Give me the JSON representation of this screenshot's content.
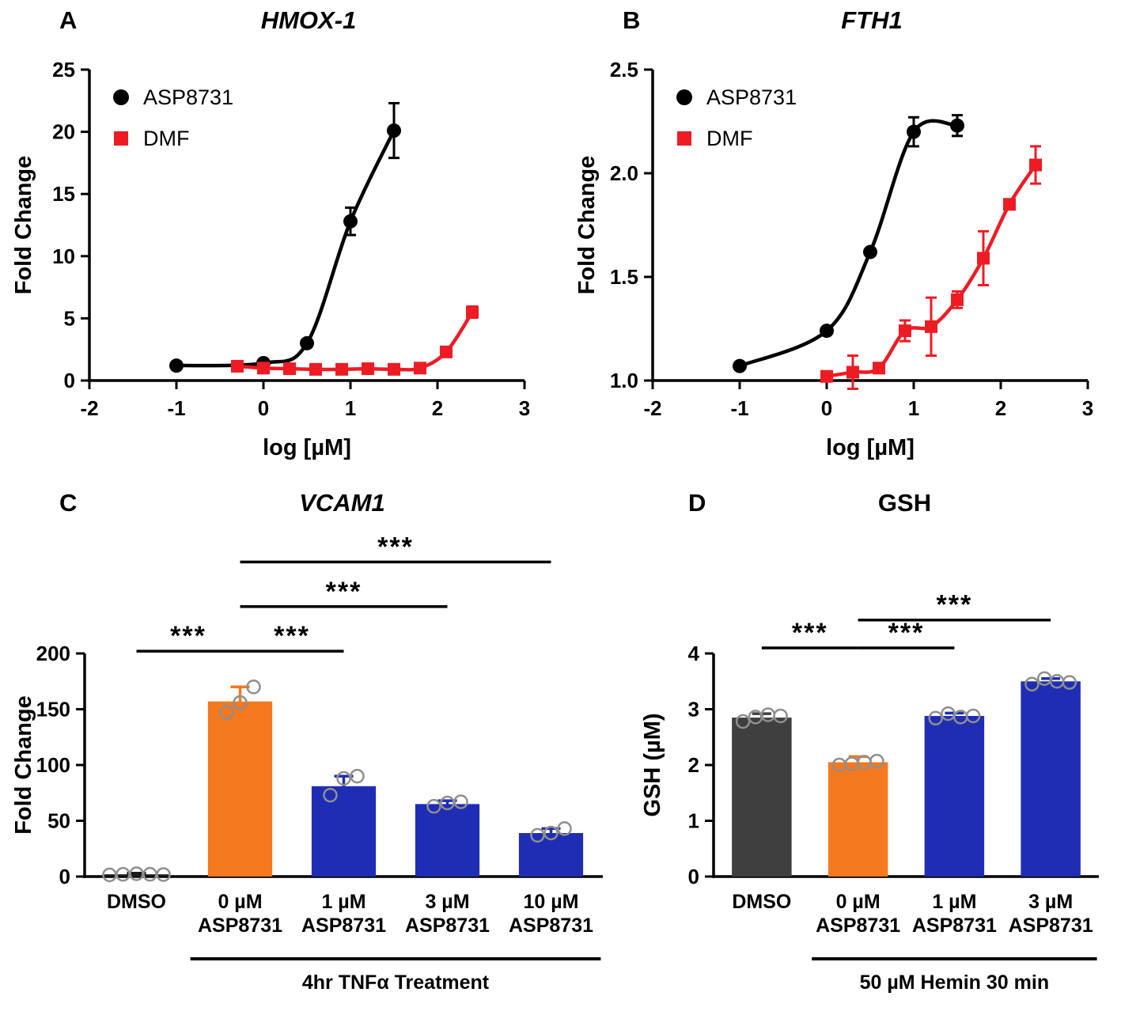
{
  "figure": {
    "background": "#ffffff"
  },
  "colors": {
    "black": "#000000",
    "red": "#ed1c24",
    "orange": "#f5791f",
    "blue": "#1f2db4",
    "dmso_dark": "#3f3f3f",
    "scatter_gray": "#8f8f8f"
  },
  "chart_data": [
    {
      "id": "hmox1",
      "panel_label": "A",
      "type": "line",
      "title": "HMOX-1",
      "xlabel": "log [µM]",
      "ylabel": "Fold Change",
      "xlim": [
        -2,
        3
      ],
      "ylim": [
        0,
        25
      ],
      "xticks": [
        -2,
        -1,
        0,
        1,
        2,
        3
      ],
      "xtick_labels": [
        "-2",
        "-1",
        "0",
        "1",
        "2",
        "3"
      ],
      "yticks": [
        0,
        5,
        10,
        15,
        20,
        25
      ],
      "ytick_labels": [
        "0",
        "5",
        "10",
        "15",
        "20",
        "25"
      ],
      "legend_position": "top-left",
      "grid": false,
      "series": [
        {
          "name": "ASP8731",
          "color": "#000000",
          "marker": "circle",
          "x": [
            -1,
            0,
            0.5,
            1,
            1.5
          ],
          "y": [
            1.2,
            1.4,
            3.0,
            12.8,
            20.1
          ],
          "yerr": [
            0,
            0,
            0,
            1.1,
            2.2
          ]
        },
        {
          "name": "DMF",
          "color": "#ed1c24",
          "marker": "square",
          "x": [
            -0.3,
            0,
            0.3,
            0.6,
            0.9,
            1.2,
            1.5,
            1.8,
            2.1,
            2.4
          ],
          "y": [
            1.15,
            1.0,
            0.95,
            0.9,
            0.9,
            0.95,
            0.9,
            1.0,
            2.3,
            5.5
          ],
          "yerr": [
            0.15,
            0.1,
            0.05,
            0.05,
            0.1,
            0.15,
            0.05,
            0.1,
            0.2,
            0.45
          ]
        }
      ]
    },
    {
      "id": "fth1",
      "panel_label": "B",
      "type": "line",
      "title": "FTH1",
      "xlabel": "log [µM]",
      "ylabel": "Fold Change",
      "xlim": [
        -2,
        3
      ],
      "ylim": [
        1.0,
        2.5
      ],
      "xticks": [
        -2,
        -1,
        0,
        1,
        2,
        3
      ],
      "xtick_labels": [
        "-2",
        "-1",
        "0",
        "1",
        "2",
        "3"
      ],
      "yticks": [
        1.0,
        1.5,
        2.0,
        2.5
      ],
      "ytick_labels": [
        "1.0",
        "1.5",
        "2.0",
        "2.5"
      ],
      "legend_position": "top-left",
      "grid": false,
      "series": [
        {
          "name": "ASP8731",
          "color": "#000000",
          "marker": "circle",
          "x": [
            -1,
            0,
            0.5,
            1,
            1.5
          ],
          "y": [
            1.07,
            1.24,
            1.62,
            2.2,
            2.23
          ],
          "yerr": [
            0,
            0,
            0,
            0.07,
            0.05
          ]
        },
        {
          "name": "DMF",
          "color": "#ed1c24",
          "marker": "square",
          "x": [
            0,
            0.3,
            0.6,
            0.9,
            1.2,
            1.5,
            1.8,
            2.1,
            2.4
          ],
          "y": [
            1.02,
            1.04,
            1.06,
            1.24,
            1.26,
            1.39,
            1.59,
            1.85,
            2.04
          ],
          "yerr": [
            0.02,
            0.08,
            0.02,
            0.05,
            0.14,
            0.04,
            0.13,
            0.02,
            0.09
          ]
        }
      ]
    },
    {
      "id": "vcam1",
      "panel_label": "C",
      "type": "bar",
      "title": "VCAM1",
      "ylabel": "Fold Change",
      "ylim": [
        0,
        200
      ],
      "yticks": [
        0,
        50,
        100,
        150,
        200
      ],
      "ytick_labels": [
        "0",
        "50",
        "100",
        "150",
        "200"
      ],
      "categories": [
        [
          "DMSO"
        ],
        [
          "0 µM",
          "ASP8731"
        ],
        [
          "1 µM",
          "ASP8731"
        ],
        [
          "3 µM",
          "ASP8731"
        ],
        [
          "10 µM",
          "ASP8731"
        ]
      ],
      "values": [
        2,
        157,
        81,
        65,
        39
      ],
      "errors": [
        1,
        13,
        9,
        3,
        4
      ],
      "bar_colors": [
        "#1a1a1a",
        "#f5791f",
        "#1f2db4",
        "#1f2db4",
        "#1f2db4"
      ],
      "points": [
        [
          1.5,
          2,
          2.5,
          2,
          1.8
        ],
        [
          147,
          156,
          170
        ],
        [
          73,
          88,
          90
        ],
        [
          63,
          66,
          67
        ],
        [
          37,
          39,
          43
        ]
      ],
      "brackets": [
        {
          "from": 0,
          "to": 1,
          "y": 202,
          "label": "***"
        },
        {
          "from": 1,
          "to": 2,
          "y": 202,
          "label": "***"
        },
        {
          "from": 1,
          "to": 3,
          "y": 242,
          "label": "***"
        },
        {
          "from": 1,
          "to": 4,
          "y": 282,
          "label": "***"
        }
      ],
      "group_annotation": {
        "from": 1,
        "to": 4,
        "label": "4hr TNFα Treatment"
      }
    },
    {
      "id": "gsh",
      "panel_label": "D",
      "type": "bar",
      "title": "GSH",
      "ylabel": "GSH (µM)",
      "ylim": [
        0,
        4
      ],
      "yticks": [
        0,
        1,
        2,
        3,
        4
      ],
      "ytick_labels": [
        "0",
        "1",
        "2",
        "3",
        "4"
      ],
      "categories": [
        [
          "DMSO"
        ],
        [
          "0 µM",
          "ASP8731"
        ],
        [
          "1 µM",
          "ASP8731"
        ],
        [
          "3 µM",
          "ASP8731"
        ]
      ],
      "values": [
        2.85,
        2.05,
        2.88,
        3.5
      ],
      "errors": [
        0.07,
        0.1,
        0.05,
        0.05
      ],
      "bar_colors": [
        "#3f3f3f",
        "#f5791f",
        "#1f2db4",
        "#1f2db4"
      ],
      "points": [
        [
          2.78,
          2.86,
          2.9,
          2.88
        ],
        [
          2.0,
          2.02,
          2.05,
          2.07
        ],
        [
          2.84,
          2.92,
          2.86,
          2.88
        ],
        [
          3.45,
          3.55,
          3.5,
          3.48
        ]
      ],
      "brackets": [
        {
          "from": 0,
          "to": 1,
          "y": 4.1,
          "label": "***"
        },
        {
          "from": 1,
          "to": 2,
          "y": 4.1,
          "label": "***"
        },
        {
          "from": 1,
          "to": 3,
          "y": 4.6,
          "label": "***"
        }
      ],
      "group_annotation": {
        "from": 1,
        "to": 3,
        "label": "50 µM Hemin 30 min"
      }
    }
  ]
}
